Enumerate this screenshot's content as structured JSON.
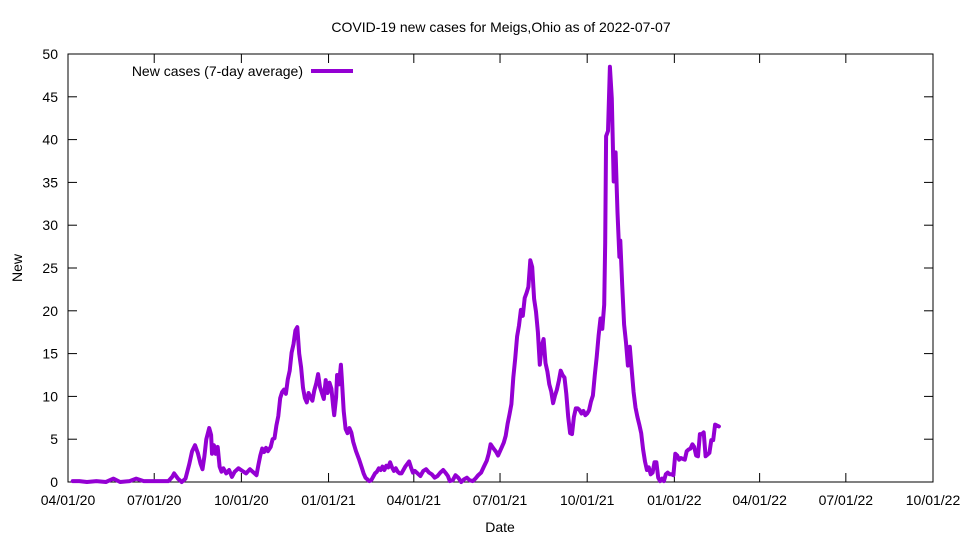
{
  "chart_data": {
    "type": "line",
    "title": "COVID-19 new cases for Meigs,Ohio as of 2022-07-07",
    "xlabel": "Date",
    "ylabel": "New",
    "ylim": [
      0,
      50
    ],
    "yticks": [
      0,
      5,
      10,
      15,
      20,
      25,
      30,
      35,
      40,
      45,
      50
    ],
    "x_range_days": [
      0,
      913
    ],
    "x_ticks": [
      {
        "day": 0,
        "label": "04/01/20"
      },
      {
        "day": 91,
        "label": "07/01/20"
      },
      {
        "day": 183,
        "label": "10/01/20"
      },
      {
        "day": 275,
        "label": "01/01/21"
      },
      {
        "day": 365,
        "label": "04/01/21"
      },
      {
        "day": 456,
        "label": "07/01/21"
      },
      {
        "day": 548,
        "label": "10/01/21"
      },
      {
        "day": 640,
        "label": "01/01/22"
      },
      {
        "day": 730,
        "label": "04/01/22"
      },
      {
        "day": 821,
        "label": "07/01/22"
      },
      {
        "day": 913,
        "label": "10/01/22"
      }
    ],
    "grid": false,
    "legend_position": "top-left",
    "series": [
      {
        "name": "New cases (7-day average)",
        "color": "#9400d3",
        "x_unit": "days since 2020-04-01",
        "points": [
          [
            5,
            0.1
          ],
          [
            12,
            0.1
          ],
          [
            20,
            0
          ],
          [
            30,
            0.1
          ],
          [
            40,
            0
          ],
          [
            48,
            0.4
          ],
          [
            55,
            0
          ],
          [
            65,
            0.1
          ],
          [
            72,
            0.4
          ],
          [
            80,
            0.1
          ],
          [
            90,
            0.1
          ],
          [
            100,
            0.1
          ],
          [
            106,
            0.1
          ],
          [
            110,
            0.6
          ],
          [
            112,
            1
          ],
          [
            116,
            0.4
          ],
          [
            120,
            0
          ],
          [
            124,
            0.4
          ],
          [
            128,
            2.1
          ],
          [
            131,
            3.6
          ],
          [
            134,
            4.3
          ],
          [
            137,
            3.4
          ],
          [
            140,
            2.1
          ],
          [
            142,
            1.5
          ],
          [
            144,
            3
          ],
          [
            146,
            5
          ],
          [
            149,
            6.3
          ],
          [
            151,
            5.5
          ],
          [
            152,
            3.3
          ],
          [
            154,
            4.3
          ],
          [
            156,
            3.3
          ],
          [
            158,
            4.1
          ],
          [
            160,
            1.8
          ],
          [
            162,
            1.2
          ],
          [
            164,
            1.6
          ],
          [
            167,
            1
          ],
          [
            170,
            1.4
          ],
          [
            173,
            0.6
          ],
          [
            176,
            1.2
          ],
          [
            180,
            1.6
          ],
          [
            184,
            1.3
          ],
          [
            188,
            1
          ],
          [
            192,
            1.5
          ],
          [
            196,
            1.1
          ],
          [
            199,
            0.8
          ],
          [
            201,
            2
          ],
          [
            203,
            3.1
          ],
          [
            205,
            3.9
          ],
          [
            207,
            3.5
          ],
          [
            209,
            4
          ],
          [
            211,
            3.6
          ],
          [
            214,
            4.1
          ],
          [
            216,
            5
          ],
          [
            218,
            5.1
          ],
          [
            220,
            6.6
          ],
          [
            222,
            7.7
          ],
          [
            224,
            9.8
          ],
          [
            226,
            10.5
          ],
          [
            228,
            10.8
          ],
          [
            230,
            10.3
          ],
          [
            232,
            12
          ],
          [
            234,
            13
          ],
          [
            236,
            15.1
          ],
          [
            238,
            16.1
          ],
          [
            240,
            17.7
          ],
          [
            242,
            18.1
          ],
          [
            244,
            15
          ],
          [
            246,
            13.4
          ],
          [
            248,
            11
          ],
          [
            250,
            9.8
          ],
          [
            252,
            9.3
          ],
          [
            254,
            10.4
          ],
          [
            256,
            9.9
          ],
          [
            258,
            9.5
          ],
          [
            260,
            10.7
          ],
          [
            262,
            11.5
          ],
          [
            264,
            12.6
          ],
          [
            266,
            11.1
          ],
          [
            268,
            10.4
          ],
          [
            270,
            9.7
          ],
          [
            272,
            11.9
          ],
          [
            274,
            10.4
          ],
          [
            276,
            11.6
          ],
          [
            278,
            10.9
          ],
          [
            280,
            8.7
          ],
          [
            281,
            7.8
          ],
          [
            283,
            9.9
          ],
          [
            284,
            12.5
          ],
          [
            286,
            11.4
          ],
          [
            288,
            13.7
          ],
          [
            289,
            12.1
          ],
          [
            291,
            8.3
          ],
          [
            293,
            6.2
          ],
          [
            295,
            5.7
          ],
          [
            297,
            6.3
          ],
          [
            299,
            5.8
          ],
          [
            301,
            4.7
          ],
          [
            304,
            3.6
          ],
          [
            307,
            2.7
          ],
          [
            310,
            1.7
          ],
          [
            312,
            1
          ],
          [
            314,
            0.5
          ],
          [
            316,
            0.3
          ],
          [
            318,
            0.1
          ],
          [
            320,
            0.2
          ],
          [
            322,
            0.6
          ],
          [
            324,
            1
          ],
          [
            326,
            1.2
          ],
          [
            328,
            1.6
          ],
          [
            330,
            1.4
          ],
          [
            332,
            1.8
          ],
          [
            334,
            1.4
          ],
          [
            336,
            1.9
          ],
          [
            338,
            1.7
          ],
          [
            340,
            2.3
          ],
          [
            342,
            1.7
          ],
          [
            344,
            1.3
          ],
          [
            346,
            1.6
          ],
          [
            348,
            1.2
          ],
          [
            350,
            1
          ],
          [
            352,
            1
          ],
          [
            354,
            1.4
          ],
          [
            356,
            1.8
          ],
          [
            358,
            2.1
          ],
          [
            360,
            2.4
          ],
          [
            362,
            1.7
          ],
          [
            364,
            1.1
          ],
          [
            366,
            1.3
          ],
          [
            368,
            1.1
          ],
          [
            370,
            0.9
          ],
          [
            372,
            0.7
          ],
          [
            375,
            1.3
          ],
          [
            378,
            1.5
          ],
          [
            381,
            1.1
          ],
          [
            384,
            0.9
          ],
          [
            387,
            0.5
          ],
          [
            390,
            0.7
          ],
          [
            393,
            1.1
          ],
          [
            396,
            1.4
          ],
          [
            399,
            1
          ],
          [
            401,
            0.7
          ],
          [
            403,
            0.1
          ],
          [
            406,
            0.2
          ],
          [
            409,
            0.8
          ],
          [
            412,
            0.5
          ],
          [
            415,
            0
          ],
          [
            418,
            0.3
          ],
          [
            421,
            0.5
          ],
          [
            424,
            0.2
          ],
          [
            427,
            0.1
          ],
          [
            430,
            0.4
          ],
          [
            433,
            0.8
          ],
          [
            436,
            1.1
          ],
          [
            439,
            1.8
          ],
          [
            442,
            2.5
          ],
          [
            444,
            3.3
          ],
          [
            446,
            4.4
          ],
          [
            448,
            4.1
          ],
          [
            450,
            3.8
          ],
          [
            452,
            3.5
          ],
          [
            454,
            3.1
          ],
          [
            456,
            3.6
          ],
          [
            458,
            4.1
          ],
          [
            460,
            4.6
          ],
          [
            462,
            5.4
          ],
          [
            464,
            6.8
          ],
          [
            466,
            7.9
          ],
          [
            468,
            9.1
          ],
          [
            470,
            12.2
          ],
          [
            472,
            14.4
          ],
          [
            474,
            17
          ],
          [
            476,
            18.3
          ],
          [
            478,
            20.1
          ],
          [
            480,
            19.4
          ],
          [
            482,
            21.5
          ],
          [
            484,
            22.1
          ],
          [
            486,
            22.8
          ],
          [
            488,
            25.9
          ],
          [
            490,
            25.1
          ],
          [
            492,
            21.4
          ],
          [
            494,
            19.9
          ],
          [
            496,
            17.5
          ],
          [
            498,
            13.7
          ],
          [
            500,
            15.9
          ],
          [
            502,
            16.7
          ],
          [
            504,
            13.9
          ],
          [
            506,
            12.9
          ],
          [
            508,
            11.4
          ],
          [
            510,
            10.6
          ],
          [
            512,
            9.2
          ],
          [
            514,
            10.1
          ],
          [
            516,
            10.8
          ],
          [
            518,
            11.8
          ],
          [
            520,
            13
          ],
          [
            522,
            12.5
          ],
          [
            524,
            12.2
          ],
          [
            526,
            10.3
          ],
          [
            528,
            7.6
          ],
          [
            530,
            5.7
          ],
          [
            532,
            5.6
          ],
          [
            534,
            7.6
          ],
          [
            536,
            8.6
          ],
          [
            538,
            8.6
          ],
          [
            540,
            8.4
          ],
          [
            542,
            8
          ],
          [
            544,
            8.3
          ],
          [
            546,
            7.8
          ],
          [
            548,
            8
          ],
          [
            550,
            8.4
          ],
          [
            552,
            9.4
          ],
          [
            554,
            10.1
          ],
          [
            556,
            12.5
          ],
          [
            558,
            14.6
          ],
          [
            560,
            17.1
          ],
          [
            562,
            19.1
          ],
          [
            564,
            17.9
          ],
          [
            566,
            20.7
          ],
          [
            567,
            28
          ],
          [
            568,
            40.4
          ],
          [
            570,
            41
          ],
          [
            572,
            48.5
          ],
          [
            574,
            44.8
          ],
          [
            576,
            35.1
          ],
          [
            578,
            38.5
          ],
          [
            580,
            31.5
          ],
          [
            582,
            26.3
          ],
          [
            583,
            28.2
          ],
          [
            585,
            23
          ],
          [
            587,
            18.4
          ],
          [
            589,
            16.3
          ],
          [
            591,
            13.6
          ],
          [
            593,
            15.8
          ],
          [
            595,
            13.1
          ],
          [
            597,
            10.5
          ],
          [
            599,
            8.7
          ],
          [
            601,
            7.6
          ],
          [
            603,
            6.7
          ],
          [
            605,
            5.7
          ],
          [
            607,
            3.8
          ],
          [
            609,
            2.4
          ],
          [
            611,
            1.4
          ],
          [
            613,
            1.7
          ],
          [
            615,
            0.9
          ],
          [
            617,
            1.1
          ],
          [
            619,
            2.3
          ],
          [
            621,
            2.3
          ],
          [
            623,
            0.5
          ],
          [
            625,
            0.1
          ],
          [
            627,
            0.4
          ],
          [
            629,
            0.1
          ],
          [
            631,
            0.9
          ],
          [
            633,
            1.1
          ],
          [
            635,
            0.9
          ],
          [
            637,
            0.9
          ],
          [
            639,
            0.8
          ],
          [
            641,
            3.3
          ],
          [
            643,
            3.1
          ],
          [
            645,
            2.6
          ],
          [
            647,
            2.8
          ],
          [
            649,
            2.7
          ],
          [
            651,
            2.6
          ],
          [
            653,
            3.6
          ],
          [
            655,
            3.8
          ],
          [
            657,
            3.9
          ],
          [
            659,
            4.4
          ],
          [
            661,
            4.1
          ],
          [
            663,
            3.1
          ],
          [
            665,
            3
          ],
          [
            667,
            5.6
          ],
          [
            669,
            5.6
          ],
          [
            671,
            5.8
          ],
          [
            673,
            3
          ],
          [
            675,
            3.2
          ],
          [
            677,
            3.4
          ],
          [
            679,
            4.9
          ],
          [
            681,
            4.9
          ],
          [
            683,
            6.7
          ],
          [
            685,
            6.6
          ],
          [
            687,
            6.5
          ]
        ]
      }
    ]
  }
}
